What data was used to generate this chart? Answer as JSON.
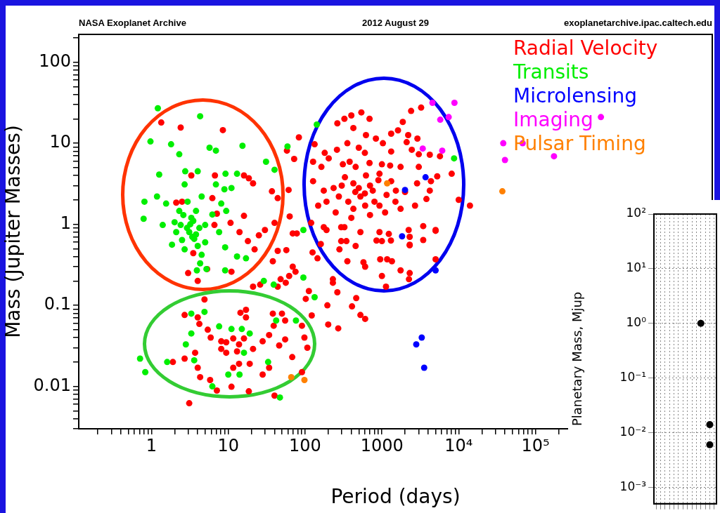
{
  "chart_data": [
    {
      "type": "scatter",
      "title": "NASA Exoplanet Archive",
      "subtitle": "2012 August 29",
      "annotations": [
        "exoplanetarchive.ipac.caltech.edu"
      ],
      "xlabel": "Period (days)",
      "ylabel": "Mass (Jupiter Masses)",
      "log": "xy",
      "marker": "circle",
      "legend": "top right",
      "xlim": [
        0.113,
        20000000
      ],
      "ylim": [
        0.003,
        220
      ],
      "xticks": [
        {
          "value": 0.2,
          "label": null
        },
        {
          "value": 0.3,
          "label": null
        },
        {
          "value": 0.4,
          "label": null
        },
        {
          "value": 0.5,
          "label": null
        },
        {
          "value": 0.6,
          "label": null
        },
        {
          "value": 0.7,
          "label": null
        },
        {
          "value": 0.8,
          "label": null
        },
        {
          "value": 0.9,
          "label": null
        },
        1,
        {
          "value": 2,
          "label": null
        },
        {
          "value": 3,
          "label": null
        },
        {
          "value": 4,
          "label": null
        },
        {
          "value": 5,
          "label": null
        },
        {
          "value": 6,
          "label": null
        },
        {
          "value": 7,
          "label": null
        },
        {
          "value": 8,
          "label": null
        },
        {
          "value": 9,
          "label": null
        },
        10,
        {
          "value": 20,
          "label": null
        },
        {
          "value": 30,
          "label": null
        },
        {
          "value": 40,
          "label": null
        },
        {
          "value": 50,
          "label": null
        },
        {
          "value": 60,
          "label": null
        },
        {
          "value": 70,
          "label": null
        },
        {
          "value": 80,
          "label": null
        },
        {
          "value": 90,
          "label": null
        },
        100,
        {
          "value": 200,
          "label": null
        },
        {
          "value": 300,
          "label": null
        },
        {
          "value": 400,
          "label": null
        },
        {
          "value": 500,
          "label": null
        },
        {
          "value": 600,
          "label": null
        },
        {
          "value": 700,
          "label": null
        },
        {
          "value": 800,
          "label": null
        },
        {
          "value": 900,
          "label": null
        },
        1000,
        {
          "value": 2000,
          "label": null
        },
        {
          "value": 3000,
          "label": null
        },
        {
          "value": 4000,
          "label": null
        },
        {
          "value": 5000,
          "label": null
        },
        {
          "value": 6000,
          "label": null
        },
        {
          "value": 7000,
          "label": null
        },
        {
          "value": 8000,
          "label": null
        },
        {
          "value": 9000,
          "label": null
        },
        {
          "value": 10000,
          "label": "10⁴"
        },
        {
          "value": 20000,
          "label": null
        },
        {
          "value": 30000,
          "label": null
        },
        {
          "value": 40000,
          "label": null
        },
        {
          "value": 50000,
          "label": null
        },
        {
          "value": 60000,
          "label": null
        },
        {
          "value": 70000,
          "label": null
        },
        {
          "value": 80000,
          "label": null
        },
        {
          "value": 90000,
          "label": null
        },
        {
          "value": 100000,
          "label": "10⁵"
        },
        {
          "value": 200000,
          "label": null
        }
      ],
      "yticks": [
        {
          "value": 0.003,
          "label": null
        },
        {
          "value": 0.004,
          "label": null
        },
        {
          "value": 0.005,
          "label": null
        },
        {
          "value": 0.006,
          "label": null
        },
        {
          "value": 0.007,
          "label": null
        },
        {
          "value": 0.008,
          "label": null
        },
        {
          "value": 0.009,
          "label": null
        },
        0.01,
        {
          "value": 0.02,
          "label": null
        },
        {
          "value": 0.03,
          "label": null
        },
        {
          "value": 0.04,
          "label": null
        },
        {
          "value": 0.05,
          "label": null
        },
        {
          "value": 0.06,
          "label": null
        },
        {
          "value": 0.07,
          "label": null
        },
        {
          "value": 0.08,
          "label": null
        },
        {
          "value": 0.09,
          "label": null
        },
        0.1,
        {
          "value": 0.2,
          "label": null
        },
        {
          "value": 0.3,
          "label": null
        },
        {
          "value": 0.4,
          "label": null
        },
        {
          "value": 0.5,
          "label": null
        },
        {
          "value": 0.6,
          "label": null
        },
        {
          "value": 0.7,
          "label": null
        },
        {
          "value": 0.8,
          "label": null
        },
        {
          "value": 0.9,
          "label": null
        },
        1,
        {
          "value": 2,
          "label": null
        },
        {
          "value": 3,
          "label": null
        },
        {
          "value": 4,
          "label": null
        },
        {
          "value": 5,
          "label": null
        },
        {
          "value": 6,
          "label": null
        },
        {
          "value": 7,
          "label": null
        },
        {
          "value": 8,
          "label": null
        },
        {
          "value": 9,
          "label": null
        },
        10,
        {
          "value": 20,
          "label": null
        },
        {
          "value": 30,
          "label": null
        },
        {
          "value": 40,
          "label": null
        },
        {
          "value": 50,
          "label": null
        },
        {
          "value": 60,
          "label": null
        },
        {
          "value": 70,
          "label": null
        },
        {
          "value": 80,
          "label": null
        },
        {
          "value": 90,
          "label": null
        },
        100,
        {
          "value": 200,
          "label": null
        }
      ],
      "series": [
        {
          "name": "Radial Velocity",
          "color": "#ff0000",
          "x": [
            1.34,
            2.4,
            8.5,
            83,
            58,
            72,
            3.3,
            6.7,
            16,
            18.5,
            21,
            37,
            44,
            61,
            6.2,
            2.5,
            2.1,
            7.1,
            16,
            63,
            10.7,
            40,
            6.6,
            14,
            30,
            25,
            18,
            69,
            78,
            44,
            57,
            22,
            38,
            69,
            75,
            62,
            48,
            56,
            44,
            26,
            21,
            11,
            3.0,
            4.0,
            5.3,
            3.5,
            4.9,
            2.7,
            4.0,
            4.2,
            14.4,
            17,
            17,
            5.4,
            5.9,
            8.1,
            9.4,
            11.6,
            16,
            13.8,
            8.1,
            9.4,
            13,
            21,
            28,
            34,
            39,
            38,
            50,
            55,
            46,
            55,
            98,
            107,
            122,
            91,
            68,
            1.9,
            2.7,
            3.7,
            4.0,
            4.3,
            5.8,
            7.1,
            11,
            18.5,
            19,
            11.6,
            13.8,
            34,
            28,
            40,
            3.1,
            91,
            195,
            270,
            112,
            102,
            200,
            263,
            463,
            408,
            525,
            605,
            230,
            230,
            125,
            145,
            1000,
            1130,
            1750,
            2300,
            2250,
            5000,
            950,
            1170,
            1350,
            575,
            605,
            355,
            280,
            345,
            455,
            850,
            1310,
            2300,
            3450,
            5000,
            3450,
            295,
            190,
            540,
            400,
            325,
            263,
            690,
            2400,
            3240,
            1870,
            425,
            620,
            1320,
            1620,
            2200,
            2900,
            355,
            835,
            1030,
            2100,
            133,
            260,
            500,
            600,
            1320,
            2450,
            3020,
            4200,
            5700,
            180,
            127,
            163,
            203,
            310,
            380,
            455,
            690,
            1000,
            1280,
            1750,
            3020,
            5250,
            8100,
            10000,
            14000,
            4350,
            4200,
            2870,
            127,
            175,
            235,
            330,
            425,
            620,
            930,
            1320,
            2000,
            1520,
            1150,
            760,
            525,
            365,
            275,
            190,
            148,
            425,
            605,
            930,
            1750,
            2700,
            3800,
            120,
            175,
            325,
            525,
            930,
            1230,
            2230,
            5000,
            1000,
            2300,
            2300,
            295,
            160,
            500,
            700,
            800,
            600,
            450,
            900,
            1100,
            400,
            700,
            1500,
            300,
            250
          ],
          "values": [
            18,
            15.6,
            14.5,
            11.8,
            8.1,
            6.4,
            4.0,
            4.0,
            4.0,
            3.7,
            3.2,
            2.55,
            2.1,
            2.65,
            2.1,
            1.9,
            1.85,
            1.35,
            1.27,
            1.25,
            1.04,
            1.04,
            0.98,
            0.8,
            0.85,
            0.73,
            0.62,
            0.77,
            0.77,
            0.47,
            0.48,
            0.49,
            0.35,
            0.3,
            0.26,
            0.23,
            0.21,
            0.19,
            0.17,
            0.18,
            0.17,
            0.26,
            0.25,
            0.2,
            0.28,
            0.44,
            0.118,
            0.076,
            0.071,
            0.059,
            0.081,
            0.088,
            0.071,
            0.05,
            0.04,
            0.036,
            0.035,
            0.039,
            0.039,
            0.033,
            0.029,
            0.026,
            0.027,
            0.029,
            0.036,
            0.043,
            0.056,
            0.079,
            0.079,
            0.065,
            0.032,
            0.038,
            0.04,
            0.03,
            0.075,
            0.056,
            0.023,
            0.02,
            0.022,
            0.026,
            0.017,
            0.013,
            0.012,
            0.0089,
            0.0099,
            0.0087,
            0.019,
            0.017,
            0.019,
            0.017,
            0.014,
            0.0077,
            0.0062,
            0.015,
            0.1,
            0.052,
            0.15,
            0.12,
            0.058,
            0.145,
            0.123,
            0.097,
            0.076,
            0.068,
            0.21,
            0.19,
            0.45,
            0.38,
            0.23,
            0.17,
            0.27,
            0.25,
            0.21,
            0.37,
            0.37,
            0.37,
            0.35,
            0.34,
            0.3,
            0.35,
            0.49,
            0.62,
            0.54,
            0.63,
            0.63,
            0.55,
            0.64,
            0.83,
            0.95,
            0.92,
            0.85,
            24,
            22,
            20,
            17.6,
            20,
            25,
            27.5,
            18.3,
            15.4,
            12.6,
            13.1,
            14.4,
            12.6,
            11.4,
            10,
            11.4,
            10,
            10.3,
            9.7,
            8.3,
            8.8,
            7.6,
            7.9,
            8.3,
            7.3,
            7.2,
            6.9,
            7.6,
            5.9,
            5.1,
            6.5,
            5.5,
            5.9,
            5.1,
            5.7,
            5.5,
            5.3,
            5.1,
            5.1,
            3.9,
            4.2,
            2.0,
            1.7,
            3.4,
            2.6,
            3.2,
            3.4,
            2.6,
            2.8,
            3.8,
            3.2,
            4.0,
            4.2,
            3.4,
            2.5,
            2.6,
            2.3,
            2.6,
            2.2,
            1.9,
            2.2,
            1.9,
            1.7,
            1.55,
            1.7,
            1.7,
            1.55,
            1.7,
            2.05,
            1.04,
            0.92,
            0.92,
            0.8,
            0.8,
            0.76,
            0.85,
            0.85,
            0.62,
            0.7,
            0.56,
            0.62,
            0.57,
            2.8,
            3.0,
            1.9,
            2.4,
            2.5,
            3.5,
            1.4,
            1.2,
            1.3,
            1.9,
            3.0,
            1.4
          ]
        },
        {
          "name": "Transits",
          "color": "#00ee00",
          "x": [
            1.21,
            4.3,
            0.97,
            1.8,
            2.3,
            5.7,
            6.9,
            15.3,
            59,
            31,
            40,
            1.26,
            2.75,
            4.0,
            9.2,
            13,
            2.7,
            6.9,
            8.9,
            11,
            0.81,
            1.18,
            1.55,
            2.3,
            2.95,
            4.5,
            8.1,
            0.79,
            1.4,
            2.4,
            3.1,
            3.6,
            4.0,
            2.7,
            5.0,
            1.85,
            5.0,
            6.2,
            3.8,
            2.1,
            4.5,
            2.5,
            2.0,
            3.3,
            4.3,
            3.9,
            5.2,
            9.1,
            13,
            17,
            9.1,
            9.4,
            7.6,
            0.71,
            0.83,
            1.6,
            3.3,
            4.9,
            3.3,
            2.8,
            3.6,
            6.2,
            7.6,
            11,
            15,
            19,
            16,
            33,
            10,
            14,
            42,
            76,
            47,
            29,
            39,
            95,
            133,
            8700,
            142,
            95,
            3.2,
            3.5,
            2.9,
            3.8,
            3.4,
            4.2,
            2.6
          ],
          "values": [
            27,
            21.5,
            10.5,
            9.7,
            7.3,
            8.8,
            8.1,
            9.3,
            9.1,
            5.9,
            4.7,
            4.1,
            4.5,
            4.5,
            4.2,
            4.2,
            3.1,
            3.1,
            2.7,
            2.8,
            1.9,
            2.2,
            1.8,
            1.46,
            1.9,
            2.2,
            1.8,
            1.17,
            0.98,
            0.98,
            0.8,
            0.66,
            0.54,
            0.49,
            0.6,
            0.56,
            0.98,
            1.32,
            1.46,
            0.8,
            0.42,
            0.64,
            1.06,
            1.2,
            0.33,
            0.27,
            0.28,
            0.52,
            0.4,
            0.38,
            0.27,
            1.46,
            0.8,
            0.022,
            0.015,
            0.02,
            0.079,
            0.083,
            0.045,
            0.033,
            0.021,
            0.01,
            0.055,
            0.051,
            0.051,
            0.045,
            0.026,
            0.02,
            0.014,
            0.014,
            0.065,
            0.065,
            0.0073,
            0.2,
            0.18,
            0.22,
            0.126,
            6.5,
            17,
            0.85,
            1.0,
            1.1,
            0.9,
            0.75,
            0.7,
            0.9,
            1.3
          ]
        },
        {
          "name": "Microlensing",
          "color": "#0000ff",
          "x": [
            3700,
            2000,
            1830,
            5000,
            3300,
            2800,
            3550
          ],
          "values": [
            3.8,
            2.65,
            0.71,
            0.27,
            0.04,
            0.033,
            0.017
          ]
        },
        {
          "name": "Imaging",
          "color": "#ff00ff",
          "x": [
            4550,
            8800,
            5750,
            7400,
            3400,
            6100,
            38000,
            40000,
            68000,
            174000,
            710000
          ],
          "values": [
            31.5,
            31.5,
            19.5,
            21,
            8.6,
            8.1,
            10,
            6.2,
            10,
            6.9,
            21
          ]
        },
        {
          "name": "Pulsar Timing",
          "color": "#ff8000",
          "x": [
            1170,
            37000,
            66,
            98
          ],
          "values": [
            3.2,
            2.55,
            0.013,
            0.012
          ]
        }
      ]
    },
    {
      "type": "scatter",
      "ylabel": "Planetary Mass, Mjup",
      "log": "y",
      "grid": true,
      "marker": "circle",
      "ylim": [
        0.0005,
        100
      ],
      "yticks": [
        {
          "value": 100,
          "label": "10²"
        },
        {
          "value": 10,
          "label": "10¹"
        },
        {
          "value": 1,
          "label": "10⁰"
        },
        {
          "value": 0.1,
          "label": "10⁻¹"
        },
        {
          "value": 0.01,
          "label": "10⁻²"
        },
        {
          "value": 0.001,
          "label": "10⁻³"
        }
      ],
      "categories": [
        null,
        null,
        null,
        null,
        null,
        null,
        null,
        null,
        null,
        null,
        null,
        null,
        null,
        null
      ],
      "series": [
        {
          "color": "#000000",
          "values": [
            null,
            null,
            null,
            null,
            null,
            null,
            null,
            null,
            null,
            null,
            1.0,
            null,
            0.014,
            null
          ]
        },
        {
          "color": "#000000",
          "values": [
            null,
            null,
            null,
            null,
            null,
            null,
            null,
            null,
            null,
            null,
            null,
            null,
            0.006,
            null
          ]
        }
      ]
    }
  ]
}
